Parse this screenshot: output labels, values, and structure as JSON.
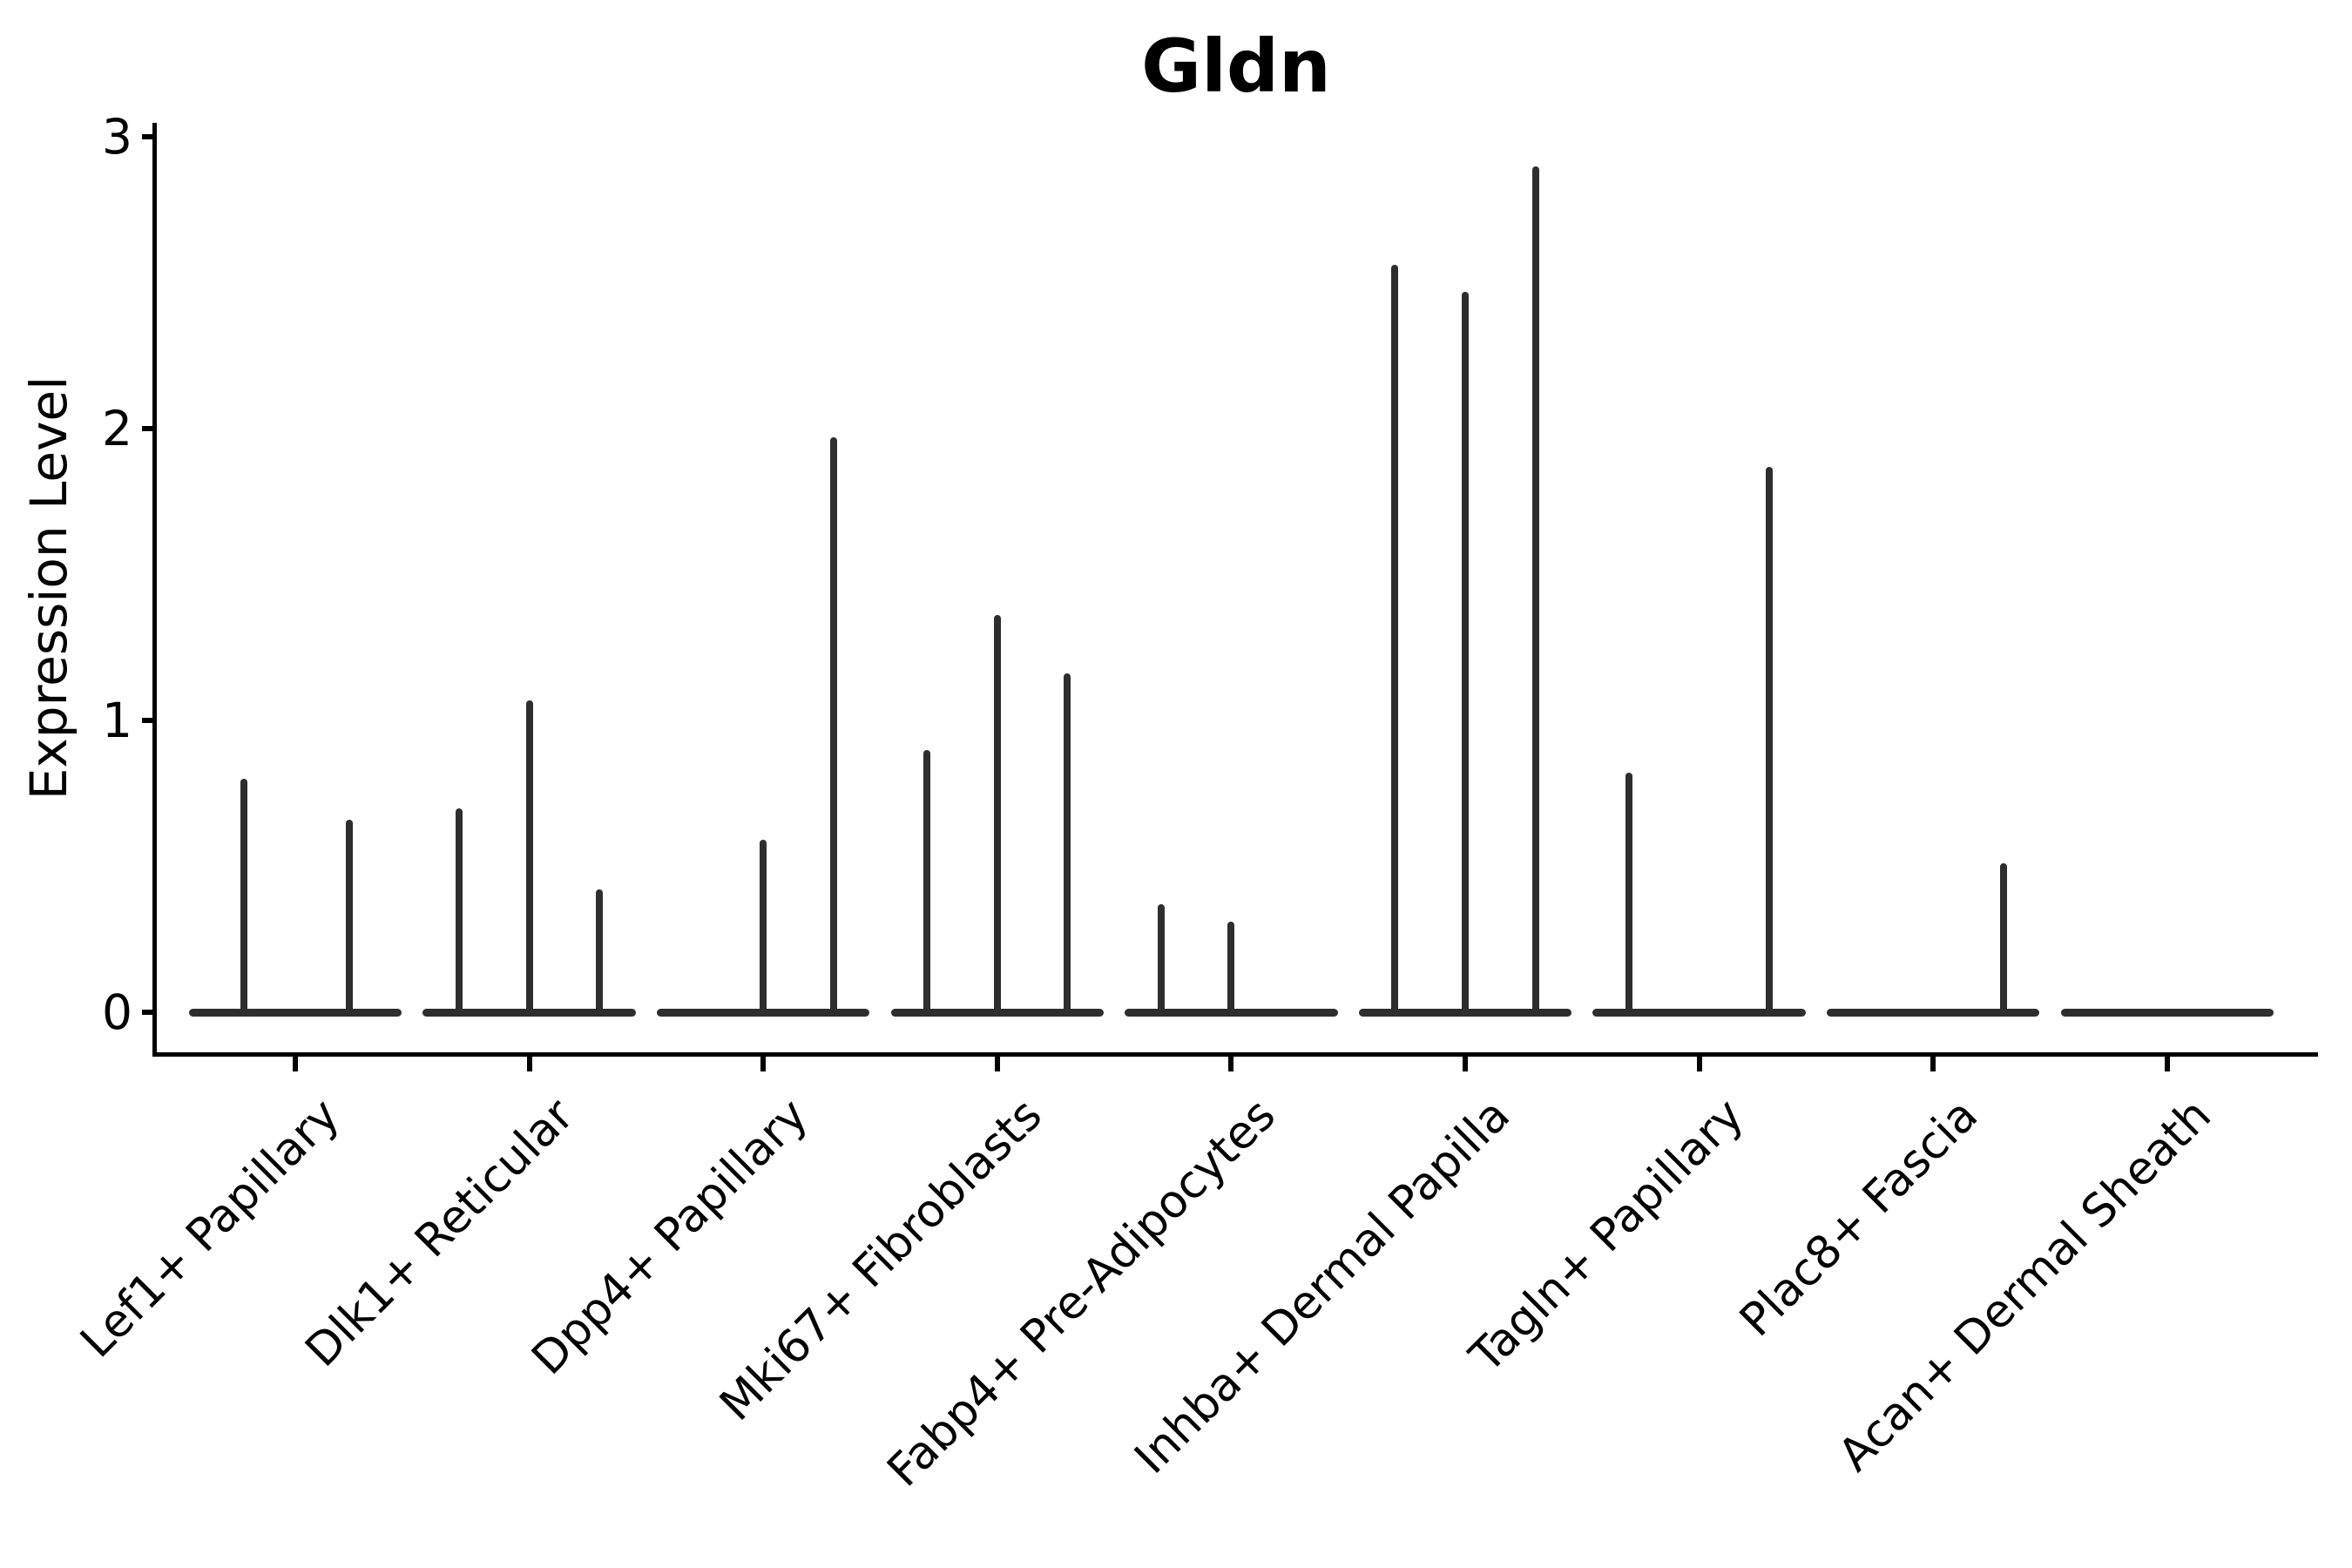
{
  "chart_data": {
    "type": "violin",
    "title": "Gldn",
    "ylabel": "Expression Level",
    "xlabel": "",
    "ylim": [
      0,
      3
    ],
    "yticks": [
      "0",
      "1",
      "2",
      "3"
    ],
    "grid": false,
    "legend": false,
    "background": "#ffffff",
    "stroke_color": "#2e2e2e",
    "axis_color": "#000000",
    "baseline_halfwidth_units": 0.455,
    "categories": [
      "Lef1+ Papillary",
      "Dlk1+ Reticular",
      "Dpp4+ Papillary",
      "Mki67+ Fibroblasts",
      "Fabp4+ Pre-Adipocytes",
      "Inhba+ Dermal Papilla",
      "Tagln+ Papillary",
      "Plac8+ Fascia",
      "Acan+ Dermal Sheath"
    ],
    "series": [
      {
        "name": "Lef1+ Papillary",
        "spikes": [
          {
            "offset": -0.22,
            "value": 0.8
          },
          {
            "offset": 0.23,
            "value": 0.66
          }
        ]
      },
      {
        "name": "Dlk1+ Reticular",
        "spikes": [
          {
            "offset": -0.3,
            "value": 0.7
          },
          {
            "offset": 0.0,
            "value": 1.07
          },
          {
            "offset": 0.3,
            "value": 0.42
          }
        ]
      },
      {
        "name": "Dpp4+ Papillary",
        "spikes": [
          {
            "offset": 0.0,
            "value": 0.59
          },
          {
            "offset": 0.3,
            "value": 1.97
          }
        ]
      },
      {
        "name": "Mki67+ Fibroblasts",
        "spikes": [
          {
            "offset": -0.3,
            "value": 0.9
          },
          {
            "offset": 0.0,
            "value": 1.36
          },
          {
            "offset": 0.3,
            "value": 1.16
          }
        ]
      },
      {
        "name": "Fabp4+ Pre-Adipocytes",
        "spikes": [
          {
            "offset": -0.3,
            "value": 0.37
          },
          {
            "offset": 0.0,
            "value": 0.31
          }
        ]
      },
      {
        "name": "Inhba+ Dermal Papilla",
        "spikes": [
          {
            "offset": -0.3,
            "value": 2.56
          },
          {
            "offset": 0.0,
            "value": 2.47
          },
          {
            "offset": 0.3,
            "value": 2.9
          }
        ]
      },
      {
        "name": "Tagln+ Papillary",
        "spikes": [
          {
            "offset": -0.3,
            "value": 0.82
          },
          {
            "offset": 0.3,
            "value": 1.87
          }
        ]
      },
      {
        "name": "Plac8+ Fascia",
        "spikes": [
          {
            "offset": 0.3,
            "value": 0.51
          }
        ]
      },
      {
        "name": "Acan+ Dermal Sheath",
        "spikes": []
      }
    ]
  }
}
